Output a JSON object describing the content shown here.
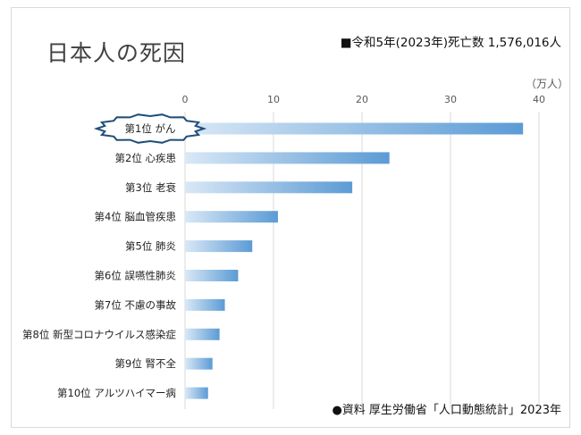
{
  "title": "日本人の死因",
  "deaths_note": "■令和5年(2023年)死亡数 1,576,016人",
  "source_note": "●資料 厚生労働省「人口動態統計」2023年",
  "chart_data": {
    "type": "bar",
    "orientation": "horizontal",
    "unit": "（万人）",
    "xlim": [
      0,
      40
    ],
    "ticks": [
      0,
      10,
      20,
      30,
      40
    ],
    "categories": [
      "第1位 がん",
      "第2位 心疾患",
      "第3位 老衰",
      "第4位 脳血管疾患",
      "第5位 肺炎",
      "第6位 誤嚥性肺炎",
      "第7位 不慮の事故",
      "第8位 新型コロナウイルス感染症",
      "第9位 腎不全",
      "第10位 アルツハイマー病"
    ],
    "values": [
      38.2,
      23.1,
      18.9,
      10.5,
      7.6,
      6.0,
      4.5,
      3.9,
      3.1,
      2.6
    ],
    "highlight_index": 0,
    "bar_color_start": "#d9e8f6",
    "bar_color_end": "#5b9bd5",
    "grid": true
  }
}
